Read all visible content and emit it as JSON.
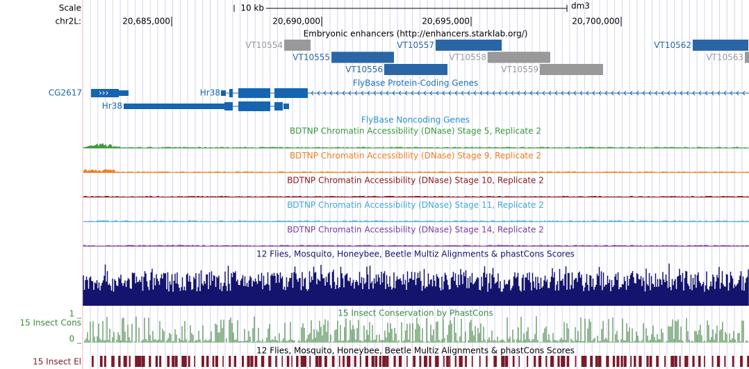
{
  "header": {
    "scale_label": "Scale",
    "scale_size": "10 kb",
    "assembly": "dm3",
    "chrom_label": "chr2L:",
    "positions": [
      "20,685,000",
      "20,690,000",
      "20,695,000",
      "20,700,000"
    ]
  },
  "enhancers": {
    "title": "Embryonic enhancers (http://enhancers.starklab.org/)",
    "items": [
      "VT10554",
      "VT10555",
      "VT10556",
      "VT10557",
      "VT10558",
      "VT10559",
      "VT10562",
      "VT10563"
    ]
  },
  "genes": {
    "title": "FlyBase Protein-Coding Genes",
    "items": [
      "CG2617",
      "Hr38",
      "Hr38"
    ]
  },
  "noncoding": {
    "title": "FlyBase Noncoding Genes"
  },
  "dnase": [
    "BDTNP Chromatin Accessibility (DNase) Stage 5, Replicate 2",
    "BDTNP Chromatin Accessibility (DNase) Stage 9, Replicate 2",
    "BDTNP Chromatin Accessibility (DNase) Stage 10, Replicate 2",
    "BDTNP Chromatin Accessibility (DNase) Stage 11, Replicate 2",
    "BDTNP Chromatin Accessibility (DNase) Stage 14, Replicate 2"
  ],
  "multiz": {
    "title": "12 Flies, Mosquito, Honeybee, Beetle Multiz Alignments & phastCons Scores"
  },
  "cons": {
    "label": "15 Insect Cons",
    "title": "15 Insect Conservation by PhastCons",
    "max_label": "1 _",
    "min_label": "0 _"
  },
  "elements": {
    "title": "12 Flies, Mosquito, Honeybee, Beetle Multiz Alignments & phastCons Scores",
    "label": "15 Insect El"
  }
}
